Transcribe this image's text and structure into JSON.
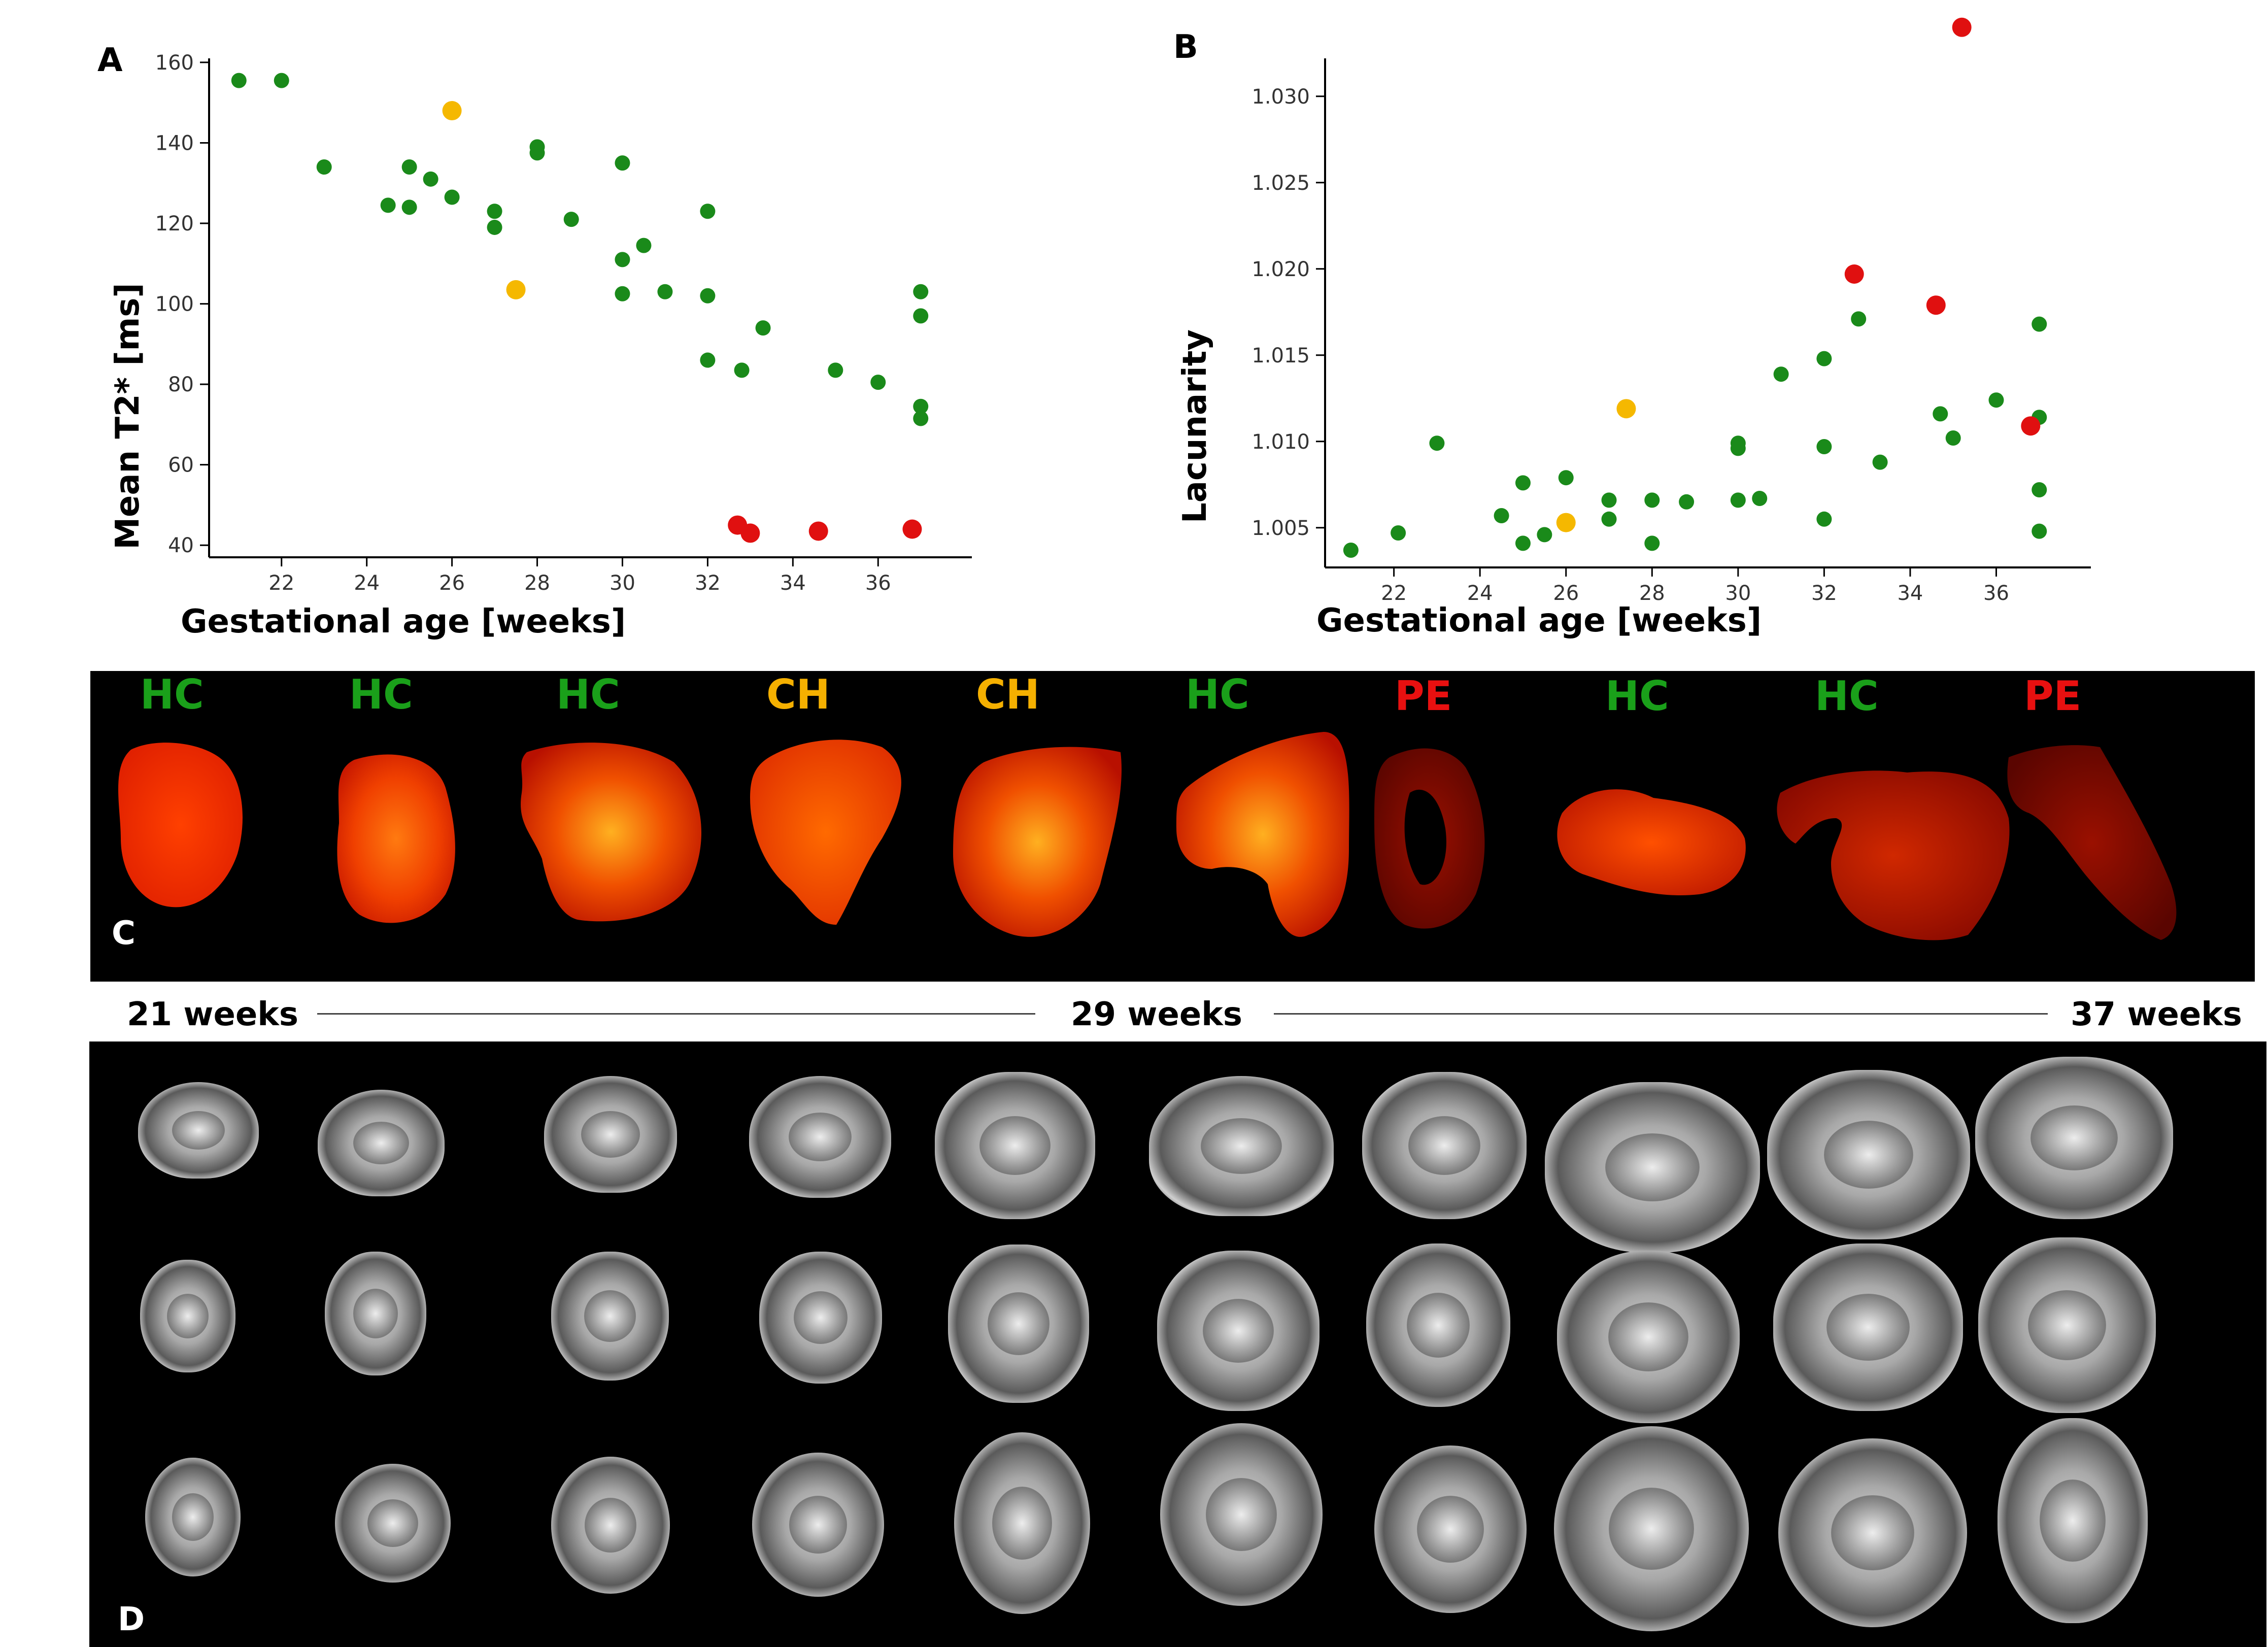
{
  "chart_data": [
    {
      "panel": "A",
      "type": "scatter",
      "xlabel": "Gestational age [weeks]",
      "ylabel": "Mean T2* [ms]",
      "xlim": [
        20.3,
        38.2
      ],
      "ylim": [
        37,
        161
      ],
      "xticks": [
        22,
        24,
        26,
        28,
        30,
        32,
        34,
        36
      ],
      "yticks": [
        40,
        60,
        80,
        100,
        120,
        140,
        160
      ],
      "series": [
        {
          "name": "HC",
          "color": "#1a8a1a",
          "points": [
            [
              21,
              155.5
            ],
            [
              22,
              155.5
            ],
            [
              23,
              134
            ],
            [
              24.5,
              124.5
            ],
            [
              25,
              134
            ],
            [
              25,
              124
            ],
            [
              25.5,
              131
            ],
            [
              26,
              126.5
            ],
            [
              27,
              123
            ],
            [
              27,
              119
            ],
            [
              28,
              139
            ],
            [
              28,
              137.5
            ],
            [
              28.8,
              121
            ],
            [
              30,
              135
            ],
            [
              30,
              111
            ],
            [
              30,
              102.5
            ],
            [
              30.5,
              114.5
            ],
            [
              31,
              103
            ],
            [
              32,
              123
            ],
            [
              32,
              102
            ],
            [
              32,
              86
            ],
            [
              32.8,
              83.5
            ],
            [
              33.3,
              94
            ],
            [
              35,
              83.5
            ],
            [
              36,
              80.5
            ],
            [
              37,
              103
            ],
            [
              37,
              97
            ],
            [
              37,
              74.5
            ],
            [
              37,
              71.5
            ]
          ]
        },
        {
          "name": "CH",
          "color": "#f5b800",
          "points": [
            [
              26,
              148
            ],
            [
              27.5,
              103.5
            ]
          ]
        },
        {
          "name": "PE",
          "color": "#e01010",
          "points": [
            [
              32.7,
              45
            ],
            [
              33,
              43
            ],
            [
              34.6,
              43.5
            ],
            [
              36.8,
              44
            ]
          ]
        }
      ]
    },
    {
      "panel": "B",
      "type": "scatter",
      "xlabel": "Gestational age [weeks]",
      "ylabel": "Lacunarity",
      "xlim": [
        20.4,
        38.2
      ],
      "ylim": [
        1.0027,
        1.0322
      ],
      "xticks": [
        22,
        24,
        26,
        28,
        30,
        32,
        34,
        36
      ],
      "xtick_labels": [
        "22",
        "24",
        "26",
        "28",
        "30",
        "32",
        "34",
        "36"
      ],
      "yticks": [
        1.005,
        1.01,
        1.015,
        1.02,
        1.025,
        1.03
      ],
      "ytick_labels": [
        "1.005",
        "1.010",
        "1.015",
        "1.020",
        "1.025",
        "1.030"
      ],
      "series": [
        {
          "name": "HC",
          "color": "#1a8a1a",
          "points": [
            [
              21,
              1.0037
            ],
            [
              22.1,
              1.0047
            ],
            [
              23,
              1.0099
            ],
            [
              24.5,
              1.0057
            ],
            [
              25,
              1.0041
            ],
            [
              25,
              1.0076
            ],
            [
              25.5,
              1.0046
            ],
            [
              26,
              1.0079
            ],
            [
              27,
              1.0066
            ],
            [
              27,
              1.0055
            ],
            [
              28,
              1.0066
            ],
            [
              28,
              1.0041
            ],
            [
              28.8,
              1.0065
            ],
            [
              30,
              1.0099
            ],
            [
              30,
              1.0096
            ],
            [
              30,
              1.0066
            ],
            [
              30.5,
              1.0067
            ],
            [
              31,
              1.0139
            ],
            [
              32,
              1.0148
            ],
            [
              32,
              1.0097
            ],
            [
              32,
              1.0055
            ],
            [
              32.8,
              1.0171
            ],
            [
              33.3,
              1.0088
            ],
            [
              34.7,
              1.0116
            ],
            [
              35,
              1.0102
            ],
            [
              36,
              1.0124
            ],
            [
              37,
              1.0168
            ],
            [
              37,
              1.0114
            ],
            [
              37,
              1.0072
            ],
            [
              37,
              1.0048
            ]
          ]
        },
        {
          "name": "CH",
          "color": "#f5b800",
          "points": [
            [
              26,
              1.0053
            ],
            [
              27.4,
              1.0119
            ]
          ]
        },
        {
          "name": "PE",
          "color": "#e01010",
          "points": [
            [
              32.7,
              1.0197
            ],
            [
              34.6,
              1.0179
            ],
            [
              35.2,
              1.034
            ],
            [
              36.8,
              1.0109
            ]
          ]
        }
      ]
    }
  ],
  "panels": {
    "a_letter": "A",
    "b_letter": "B",
    "c_letter": "C",
    "d_letter": "D"
  },
  "panel_c": {
    "labels": [
      {
        "text": "HC",
        "color": "#1aa01a"
      },
      {
        "text": "HC",
        "color": "#1aa01a"
      },
      {
        "text": "HC",
        "color": "#1aa01a"
      },
      {
        "text": "CH",
        "color": "#f5b000"
      },
      {
        "text": "CH",
        "color": "#f5b000"
      },
      {
        "text": "HC",
        "color": "#1aa01a"
      },
      {
        "text": "PE",
        "color": "#e81010"
      },
      {
        "text": "HC",
        "color": "#1aa01a"
      },
      {
        "text": "HC",
        "color": "#1aa01a"
      },
      {
        "text": "PE",
        "color": "#e81010"
      }
    ]
  },
  "timeline": {
    "start": "21 weeks",
    "middle": "29 weeks",
    "end": "37 weeks"
  }
}
